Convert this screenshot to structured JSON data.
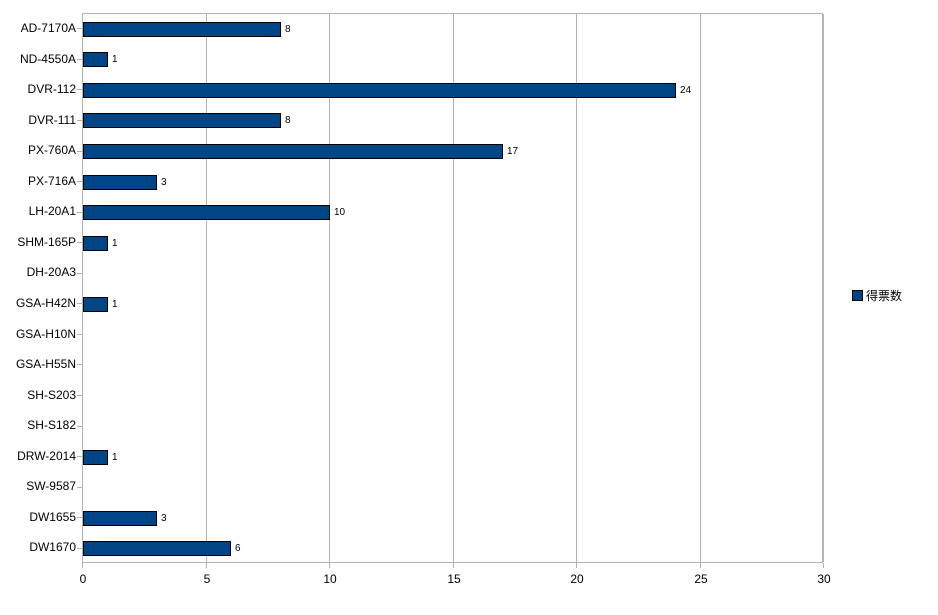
{
  "chart_data": {
    "type": "bar",
    "orientation": "horizontal",
    "title": "",
    "xlabel": "",
    "ylabel": "",
    "categories": [
      "AD-7170A",
      "ND-4550A",
      "DVR-112",
      "DVR-111",
      "PX-760A",
      "PX-716A",
      "LH-20A1",
      "SHM-165P",
      "DH-20A3",
      "GSA-H42N",
      "GSA-H10N",
      "GSA-H55N",
      "SH-S203",
      "SH-S182",
      "DRW-2014",
      "SW-9587",
      "DW1655",
      "DW1670"
    ],
    "values": [
      8,
      1,
      24,
      8,
      17,
      3,
      10,
      1,
      0,
      1,
      0,
      0,
      0,
      0,
      1,
      0,
      3,
      6
    ],
    "x_ticks": [
      0,
      5,
      10,
      15,
      20,
      25,
      30
    ],
    "xlim": [
      0,
      30
    ],
    "grid": "vertical-only",
    "legend": {
      "label": "得票数",
      "position": "right"
    },
    "colors": {
      "bar": "#004586",
      "bar_border": "#000000",
      "grid": "#b3b3b3",
      "text": "#000000",
      "background": "#ffffff"
    }
  }
}
